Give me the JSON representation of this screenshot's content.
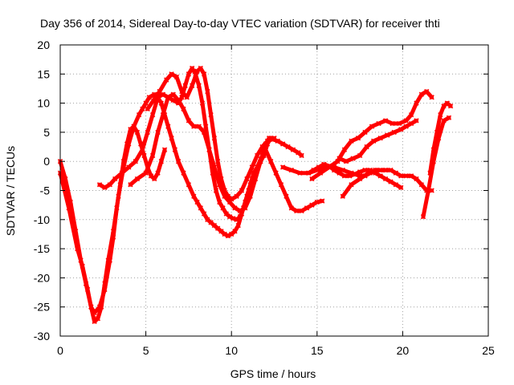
{
  "chart_data": {
    "type": "scatter",
    "title": "Day 356 of 2014, Sidereal Day-to-day VTEC variation (SDTVAR) for receiver thti",
    "xlabel": "GPS time / hours",
    "ylabel": "SDTVAR / TECUs",
    "xlim": [
      0,
      25
    ],
    "ylim": [
      -30,
      20
    ],
    "xticks": [
      0,
      5,
      10,
      15,
      20,
      25
    ],
    "yticks": [
      -30,
      -25,
      -20,
      -15,
      -10,
      -5,
      0,
      5,
      10,
      15,
      20
    ],
    "xtick_labels": [
      "0",
      "5",
      "10",
      "15",
      "20",
      "25"
    ],
    "ytick_labels": [
      "-30",
      "-25",
      "-20",
      "-15",
      "-10",
      "-5",
      "0",
      "5",
      "10",
      "15",
      "20"
    ],
    "grid": true,
    "legend": false,
    "marker": "cross",
    "color": "#ff0000",
    "series": [
      {
        "x": [
          0.0,
          0.5,
          1.0,
          1.3,
          1.6,
          1.8,
          2.0,
          2.2,
          2.4,
          2.6,
          2.8,
          3.1,
          3.4,
          3.7,
          4.0,
          4.3,
          4.6,
          4.8,
          5.0,
          5.2,
          5.5,
          5.7,
          5.9,
          6.1,
          6.3,
          6.5,
          6.7,
          6.9,
          7.2,
          7.5,
          7.8,
          8.0,
          8.2,
          8.4,
          8.6,
          8.8,
          9.0,
          9.2,
          9.4,
          9.6,
          9.8,
          10.0,
          10.2,
          10.4,
          10.6,
          10.8,
          11.0,
          11.2,
          11.5,
          11.8,
          12.0,
          12.2,
          12.5
        ],
        "y": [
          -2,
          -8,
          -15,
          -18,
          -22,
          -25,
          -27.5,
          -27,
          -25,
          -21,
          -17,
          -12,
          -6,
          -1,
          3,
          6,
          8,
          9,
          10,
          11,
          11.5,
          11,
          10,
          8,
          6,
          4,
          2,
          0,
          -2,
          -4,
          -6,
          -7,
          -8,
          -9,
          -10,
          -10.5,
          -11,
          -11.5,
          -12,
          -12.5,
          -12.8,
          -12.5,
          -12,
          -11,
          -9,
          -7,
          -5,
          -3,
          -1,
          1,
          3,
          4,
          4
        ]
      },
      {
        "x": [
          0.0,
          0.3,
          0.6,
          0.9,
          1.2,
          1.5,
          1.8,
          2.0,
          2.3,
          2.6,
          2.9,
          3.1,
          3.3,
          3.5,
          3.7,
          3.9,
          4.1,
          4.3,
          4.5,
          4.7,
          4.9,
          5.1,
          5.3,
          5.5,
          5.7,
          5.9,
          6.1
        ],
        "y": [
          0,
          -3,
          -7,
          -12,
          -17,
          -21,
          -25,
          -26,
          -25,
          -22,
          -17,
          -13,
          -8,
          -4,
          0,
          3,
          5.5,
          6,
          5,
          3,
          1,
          -1,
          -2.5,
          -3,
          -2,
          0,
          2
        ]
      },
      {
        "x": [
          2.3,
          2.6,
          2.9,
          3.2,
          3.6,
          4.0,
          4.4,
          4.8,
          5.1,
          5.4,
          5.7,
          6.0,
          6.3,
          6.6,
          6.9,
          7.1,
          7.3,
          7.5,
          7.7,
          7.9,
          8.1,
          8.3,
          8.5,
          8.7,
          8.9,
          9.1,
          9.3,
          9.5,
          9.7,
          9.9,
          10.1,
          10.3,
          10.5,
          10.7,
          10.9,
          11.1,
          11.3,
          11.5,
          11.7,
          11.9,
          12.1,
          12.3
        ],
        "y": [
          -4,
          -4.5,
          -4,
          -3,
          -2,
          -1,
          0,
          2,
          5,
          8,
          11,
          11.5,
          11,
          10.5,
          10,
          11,
          13,
          15,
          16,
          15,
          13,
          10,
          6,
          2,
          -2,
          -5,
          -7,
          -8,
          -9,
          -9.5,
          -9.8,
          -10,
          -9.5,
          -8,
          -6,
          -4,
          -2,
          -1,
          0,
          1,
          3,
          4
        ]
      },
      {
        "x": [
          4.1,
          4.5,
          5.0,
          5.4,
          5.7,
          6.0,
          6.3,
          6.6,
          6.9,
          7.2,
          7.5,
          7.8,
          8.1,
          8.4,
          8.7,
          9.0,
          9.3,
          9.6,
          9.9,
          10.2,
          10.5,
          10.8,
          11.1,
          11.4,
          11.7,
          12.0,
          12.3,
          12.6,
          12.9,
          13.2,
          13.5,
          13.8,
          14.1,
          14.4,
          14.7,
          15.0,
          15.3
        ],
        "y": [
          -4,
          -3,
          -2,
          1,
          5,
          8,
          11,
          11.5,
          10.5,
          9,
          7,
          6,
          6,
          5,
          2,
          -1,
          -4,
          -6,
          -7,
          -8,
          -8.5,
          -8,
          -6,
          -3,
          0,
          2,
          0,
          -2,
          -4,
          -6,
          -8,
          -8.5,
          -8.5,
          -8,
          -7.5,
          -7,
          -6.8
        ]
      },
      {
        "x": [
          5.1,
          5.8,
          6.2,
          6.5,
          6.8,
          7.1,
          7.4,
          7.7,
          8.0,
          8.2,
          8.4,
          8.6,
          8.8,
          9.0,
          9.2,
          9.4,
          9.6,
          9.8,
          10.0,
          10.3,
          10.6,
          10.9,
          11.2,
          11.5,
          11.8,
          12.1,
          12.4,
          12.7,
          13.0,
          13.3,
          13.6,
          13.9,
          14.1
        ],
        "y": [
          9,
          12,
          14,
          15,
          14.5,
          12,
          11,
          13,
          15.5,
          16,
          15,
          12,
          8,
          4,
          0,
          -3,
          -5,
          -6,
          -6.5,
          -6,
          -5,
          -3,
          -1,
          1,
          2.5,
          3.5,
          3.8,
          3.5,
          3,
          2.5,
          2,
          1.5,
          1
        ]
      },
      {
        "x": [
          13.0,
          13.5,
          14.0,
          14.5,
          15.0,
          15.5,
          16.0,
          16.5,
          17.0,
          17.5,
          17.8,
          18.1,
          18.4,
          18.7,
          19.0,
          19.3,
          19.6,
          19.9,
          20.2,
          20.5,
          20.8,
          21.1,
          21.4,
          21.7
        ],
        "y": [
          -1,
          -1.5,
          -2,
          -2,
          -1.5,
          -1,
          -1,
          -1.5,
          -2,
          -2.5,
          -2.5,
          -2,
          -1.5,
          -1.5,
          -1.5,
          -1.5,
          -2,
          -2.5,
          -2.5,
          -2.5,
          -3,
          -4,
          -5,
          -5
        ]
      },
      {
        "x": [
          14.5,
          14.8,
          15.1,
          15.4,
          15.7,
          16.0,
          16.3,
          16.6,
          16.9,
          17.2,
          17.5,
          17.8,
          18.1,
          18.4,
          18.7,
          19.0,
          19.3,
          19.6,
          19.9
        ],
        "y": [
          -2,
          -1.5,
          -1,
          -0.5,
          -0.8,
          -1.5,
          -2,
          -2.5,
          -2.5,
          -2.2,
          -1.8,
          -1.5,
          -1.5,
          -2,
          -2.5,
          -3,
          -3.5,
          -4,
          -4.5
        ]
      },
      {
        "x": [
          14.7,
          15.2,
          15.7,
          16.2,
          16.6,
          17.0,
          17.4,
          17.8,
          18.2,
          18.6,
          19.0,
          19.4,
          19.8,
          20.2,
          20.5,
          20.8,
          21.1,
          21.4,
          21.7
        ],
        "y": [
          -3,
          -2,
          -1,
          0,
          2,
          3.5,
          4,
          5,
          6,
          6.5,
          7,
          6.5,
          6.5,
          7,
          8,
          10,
          11.5,
          12,
          11
        ]
      },
      {
        "x": [
          16.3,
          16.7,
          17.1,
          17.5,
          17.9,
          18.3,
          18.7,
          19.1,
          19.5,
          19.9,
          20.2,
          20.5,
          20.8
        ],
        "y": [
          0.5,
          0,
          0.5,
          1,
          2.5,
          3.5,
          4,
          4.5,
          5,
          5.5,
          6,
          6.5,
          7
        ]
      },
      {
        "x": [
          16.5,
          17.0,
          17.5,
          18.0,
          18.5,
          19.0
        ],
        "y": [
          -6,
          -4,
          -3,
          -2,
          -1.5,
          -1.5
        ]
      },
      {
        "x": [
          21.2,
          21.5,
          21.8,
          22.1,
          22.4,
          22.7
        ],
        "y": [
          -9.5,
          -5,
          0,
          4,
          7,
          7.5
        ]
      },
      {
        "x": [
          21.6,
          21.8,
          22.0,
          22.2,
          22.4,
          22.6,
          22.8
        ],
        "y": [
          -2,
          2,
          5,
          8,
          9.5,
          10,
          9.5
        ]
      }
    ]
  }
}
